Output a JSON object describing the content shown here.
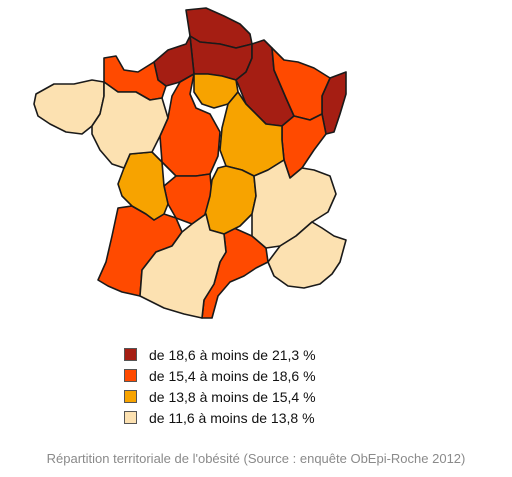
{
  "classes": [
    {
      "id": "c1",
      "label": "de 18,6 à moins de 21,3 %",
      "color": "#A51E13"
    },
    {
      "id": "c2",
      "label": "de 15,4 à moins de 18,6 %",
      "color": "#FF4A00"
    },
    {
      "id": "c3",
      "label": "de 13,8 à moins de 15,4 %",
      "color": "#F7A300"
    },
    {
      "id": "c4",
      "label": "de 11,6 à moins de 13,8 %",
      "color": "#FCE1B1"
    }
  ],
  "caption": "Répartition territoriale de l'obésité (Source : enquête ObEpi-Roche 2012)"
}
